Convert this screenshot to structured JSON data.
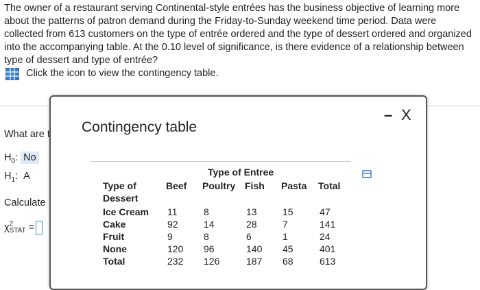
{
  "question": {
    "lines": [
      "The owner of a restaurant serving Continental-style entrées has the business objective of learning more",
      "about the patterns of patron demand during the Friday-to-Sunday weekend time period. Data were",
      "collected from 613 customers on the type of entrée ordered and the type of dessert ordered and organized",
      "into the accompanying table. At the 0.10 level of significance, is there evidence of a relationship between",
      "type of dessert and type of entrée?"
    ],
    "link": "Click the icon to view the contingency table."
  },
  "background": {
    "prompt": "What are t",
    "h0": {
      "symbol": "H",
      "sub": "0",
      "colon": ":",
      "answer": "No"
    },
    "h1": {
      "symbol": "H",
      "sub": "1",
      "colon": ":",
      "answer": "A"
    },
    "calculate": "Calculate",
    "stat": {
      "symbol": "χ",
      "sup": "2",
      "sub": "STAT",
      "eq": "="
    }
  },
  "dialog": {
    "title": "Contingency table",
    "minimize": "–",
    "close": "X",
    "table": {
      "group_header": "Type of Entree",
      "row_header": [
        "Type of",
        "Dessert"
      ],
      "columns": [
        "Beef",
        "Poultry",
        "Fish",
        "Pasta",
        "Total"
      ],
      "rows": [
        [
          "Ice Cream",
          11,
          8,
          13,
          15,
          47
        ],
        [
          "Cake",
          92,
          14,
          28,
          7,
          141
        ],
        [
          "Fruit",
          9,
          8,
          6,
          1,
          24
        ],
        [
          "None",
          120,
          96,
          140,
          45,
          401
        ],
        [
          "Total",
          232,
          126,
          187,
          68,
          613
        ]
      ]
    }
  }
}
